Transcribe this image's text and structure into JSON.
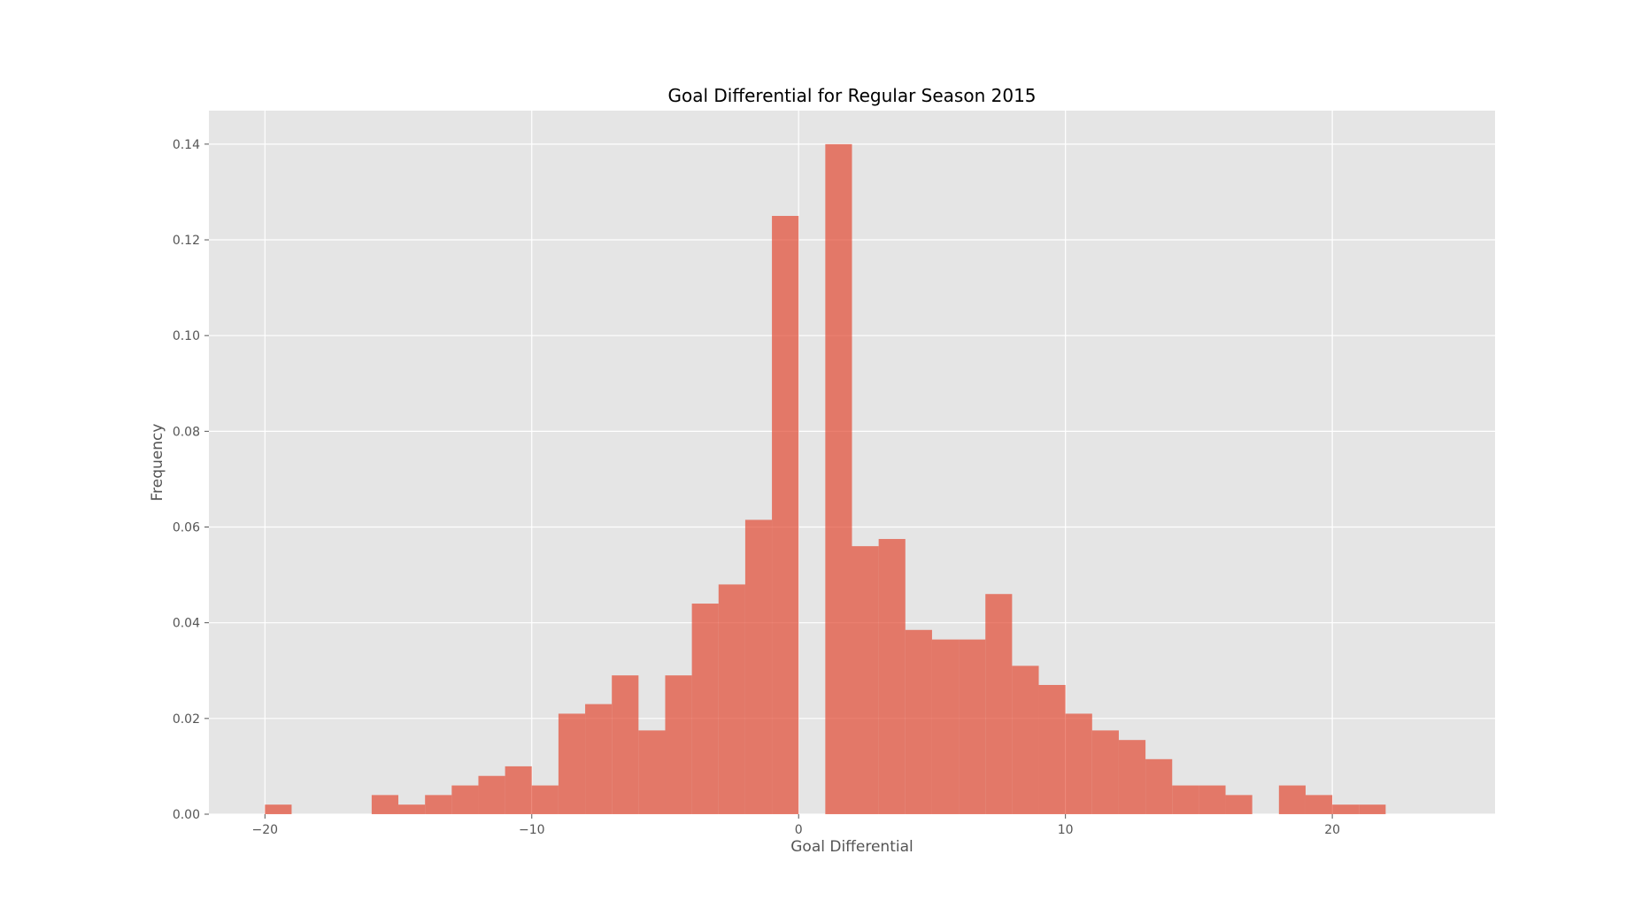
{
  "chart_data": {
    "type": "bar",
    "title": "Goal Differential for Regular Season 2015",
    "xlabel": "Goal Differential",
    "ylabel": "Frequency",
    "bin_width": 1,
    "xlim": [
      -22.1,
      26.1
    ],
    "ylim": [
      0,
      0.147
    ],
    "x_ticks": [
      -20,
      -10,
      0,
      10,
      20
    ],
    "x_tick_labels": [
      "−20",
      "−10",
      "0",
      "10",
      "20"
    ],
    "y_ticks": [
      0,
      0.02,
      0.04,
      0.06,
      0.08,
      0.1,
      0.12,
      0.14
    ],
    "y_tick_labels": [
      "0.00",
      "0.02",
      "0.04",
      "0.06",
      "0.08",
      "0.10",
      "0.12",
      "0.14"
    ],
    "grid": true,
    "colors": {
      "bar": "#e24a33",
      "bar_opacity": 0.7,
      "plot_background": "#e5e5e5",
      "grid": "#ffffff"
    },
    "bins": [
      {
        "x": -20,
        "value": 0.002
      },
      {
        "x": -19,
        "value": 0.0
      },
      {
        "x": -18,
        "value": 0.0
      },
      {
        "x": -17,
        "value": 0.0
      },
      {
        "x": -16,
        "value": 0.004
      },
      {
        "x": -15,
        "value": 0.002
      },
      {
        "x": -14,
        "value": 0.004
      },
      {
        "x": -13,
        "value": 0.006
      },
      {
        "x": -12,
        "value": 0.008
      },
      {
        "x": -11,
        "value": 0.01
      },
      {
        "x": -10,
        "value": 0.006
      },
      {
        "x": -9,
        "value": 0.021
      },
      {
        "x": -8,
        "value": 0.023
      },
      {
        "x": -7,
        "value": 0.029
      },
      {
        "x": -6,
        "value": 0.0175
      },
      {
        "x": -5,
        "value": 0.029
      },
      {
        "x": -4,
        "value": 0.044
      },
      {
        "x": -3,
        "value": 0.048
      },
      {
        "x": -2,
        "value": 0.0615
      },
      {
        "x": -1,
        "value": 0.125
      },
      {
        "x": 0,
        "value": 0.0
      },
      {
        "x": 1,
        "value": 0.14
      },
      {
        "x": 2,
        "value": 0.056
      },
      {
        "x": 3,
        "value": 0.0575
      },
      {
        "x": 4,
        "value": 0.0385
      },
      {
        "x": 5,
        "value": 0.0365
      },
      {
        "x": 6,
        "value": 0.0365
      },
      {
        "x": 7,
        "value": 0.046
      },
      {
        "x": 8,
        "value": 0.031
      },
      {
        "x": 9,
        "value": 0.027
      },
      {
        "x": 10,
        "value": 0.021
      },
      {
        "x": 11,
        "value": 0.0175
      },
      {
        "x": 12,
        "value": 0.0155
      },
      {
        "x": 13,
        "value": 0.0115
      },
      {
        "x": 14,
        "value": 0.006
      },
      {
        "x": 15,
        "value": 0.006
      },
      {
        "x": 16,
        "value": 0.004
      },
      {
        "x": 17,
        "value": 0.0
      },
      {
        "x": 18,
        "value": 0.006
      },
      {
        "x": 19,
        "value": 0.004
      },
      {
        "x": 20,
        "value": 0.002
      },
      {
        "x": 21,
        "value": 0.002
      }
    ]
  }
}
